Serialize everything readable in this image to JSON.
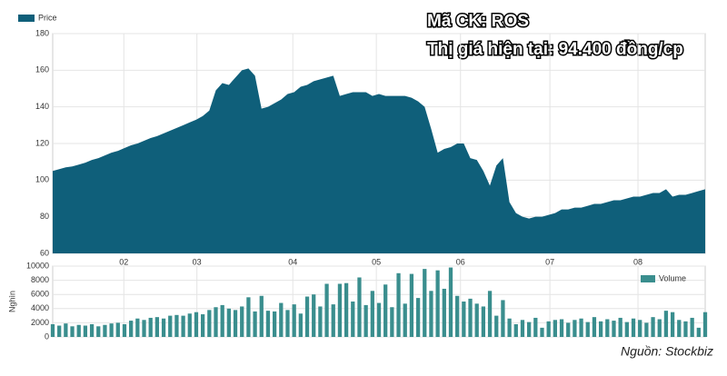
{
  "overlay": {
    "ticker": "Mã CK: ROS",
    "price_text": "Thị giá hiện tại: 94.400 đồng/cp"
  },
  "source": "Nguồn: Stockbiz",
  "chart_data": [
    {
      "type": "area",
      "legend": "Price",
      "color": "#0f5f7a",
      "grid": true,
      "xlim": [
        0,
        100
      ],
      "xticks": [
        {
          "value": 10.9,
          "label": "02"
        },
        {
          "value": 22.1,
          "label": "03"
        },
        {
          "value": 36.8,
          "label": "04"
        },
        {
          "value": 49.6,
          "label": "05"
        },
        {
          "value": 62.5,
          "label": "06"
        },
        {
          "value": 76.2,
          "label": "07"
        },
        {
          "value": 89.7,
          "label": "08"
        }
      ],
      "ylim": [
        60,
        180
      ],
      "yticks": [
        60,
        80,
        100,
        120,
        140,
        160,
        180
      ],
      "values": [
        105,
        106,
        107,
        107.5,
        108.5,
        109.5,
        111,
        112,
        113.5,
        115,
        116,
        117.5,
        119,
        120,
        121.5,
        123,
        124,
        125.5,
        127,
        128.5,
        130,
        131.5,
        133,
        135,
        138,
        149,
        153,
        152,
        156,
        160,
        161,
        157,
        139,
        140,
        142,
        144,
        147,
        148,
        151,
        152,
        154,
        155,
        156,
        157,
        146,
        147,
        148,
        148,
        148,
        146,
        147,
        146,
        146,
        146,
        146,
        145,
        143,
        140,
        128,
        115,
        117,
        118,
        120,
        120,
        112,
        111,
        105,
        97,
        108,
        112,
        88,
        82,
        80,
        79,
        80,
        80,
        81,
        82,
        84,
        84,
        85,
        85,
        86,
        87,
        87,
        88,
        89,
        89,
        90,
        91,
        91,
        92,
        93,
        93,
        95,
        91,
        92,
        92,
        93,
        94,
        95
      ]
    },
    {
      "type": "bar",
      "legend": "Volume",
      "color": "#3a8e8e",
      "grid": true,
      "y_label": "Nghìn",
      "xlim": [
        0,
        100
      ],
      "ylim": [
        0,
        10000
      ],
      "yticks": [
        0,
        2000,
        4000,
        6000,
        8000,
        10000
      ],
      "values": [
        1800,
        1600,
        1900,
        1500,
        1700,
        1600,
        1800,
        1500,
        1700,
        1900,
        2000,
        1800,
        2300,
        2600,
        2400,
        2700,
        2800,
        2600,
        3000,
        3100,
        3000,
        3300,
        3500,
        3200,
        3800,
        4200,
        4500,
        4000,
        3800,
        4300,
        5600,
        3600,
        5800,
        3700,
        3600,
        4800,
        3800,
        4600,
        3300,
        5700,
        6000,
        4300,
        7500,
        4600,
        7500,
        7600,
        5000,
        8400,
        4500,
        6500,
        4800,
        7400,
        4200,
        9000,
        4700,
        8900,
        5500,
        9600,
        6500,
        9400,
        6800,
        9800,
        5800,
        5000,
        5400,
        4700,
        4300,
        6500,
        3000,
        5200,
        2600,
        1800,
        2400,
        2100,
        2700,
        1300,
        2200,
        2400,
        2500,
        2000,
        2400,
        2600,
        2100,
        2800,
        2200,
        2500,
        2300,
        2700,
        2100,
        2600,
        2400,
        2000,
        2800,
        2500,
        3700,
        3500,
        2400,
        2200,
        2700,
        1300,
        3500
      ]
    }
  ]
}
